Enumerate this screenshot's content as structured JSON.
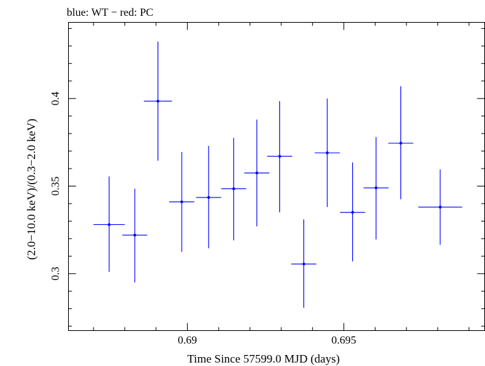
{
  "chart_data": {
    "type": "scatter",
    "title": "blue: WT − red: PC",
    "xlabel": "Time Since 57599.0 MJD (days)",
    "ylabel": "(2.0−10.0 keV)/(0.3−2.0 keV)",
    "xlim": [
      0.6862,
      0.6995
    ],
    "ylim": [
      0.2675,
      0.4435
    ],
    "xticks_major": [
      0.69,
      0.695
    ],
    "xtick_labels": [
      "0.69",
      "0.695"
    ],
    "yticks_major": [
      0.3,
      0.35,
      0.4
    ],
    "ytick_labels": [
      "0.3",
      "0.35",
      "0.4"
    ],
    "grid": false,
    "series": [
      {
        "color": "#0000ff",
        "points": [
          {
            "x": 0.6875,
            "y": 0.328,
            "xerr": 0.0005,
            "yerr_lo": 0.027,
            "yerr_hi": 0.0275
          },
          {
            "x": 0.68832,
            "y": 0.322,
            "xerr": 0.0004,
            "yerr_lo": 0.027,
            "yerr_hi": 0.0265
          },
          {
            "x": 0.68906,
            "y": 0.3985,
            "xerr": 0.00045,
            "yerr_lo": 0.034,
            "yerr_hi": 0.034
          },
          {
            "x": 0.68982,
            "y": 0.341,
            "xerr": 0.0004,
            "yerr_lo": 0.0285,
            "yerr_hi": 0.0285
          },
          {
            "x": 0.69068,
            "y": 0.3435,
            "xerr": 0.0004,
            "yerr_lo": 0.029,
            "yerr_hi": 0.0295
          },
          {
            "x": 0.69148,
            "y": 0.3485,
            "xerr": 0.0004,
            "yerr_lo": 0.0295,
            "yerr_hi": 0.029
          },
          {
            "x": 0.69222,
            "y": 0.3575,
            "xerr": 0.0004,
            "yerr_lo": 0.0305,
            "yerr_hi": 0.0305
          },
          {
            "x": 0.69295,
            "y": 0.367,
            "xerr": 0.0004,
            "yerr_lo": 0.032,
            "yerr_hi": 0.0315
          },
          {
            "x": 0.69372,
            "y": 0.3055,
            "xerr": 0.0004,
            "yerr_lo": 0.025,
            "yerr_hi": 0.0255
          },
          {
            "x": 0.69447,
            "y": 0.369,
            "xerr": 0.0004,
            "yerr_lo": 0.031,
            "yerr_hi": 0.031
          },
          {
            "x": 0.69528,
            "y": 0.335,
            "xerr": 0.0004,
            "yerr_lo": 0.028,
            "yerr_hi": 0.0285
          },
          {
            "x": 0.69603,
            "y": 0.349,
            "xerr": 0.0004,
            "yerr_lo": 0.0295,
            "yerr_hi": 0.029
          },
          {
            "x": 0.69682,
            "y": 0.3745,
            "xerr": 0.0004,
            "yerr_lo": 0.032,
            "yerr_hi": 0.0325
          },
          {
            "x": 0.69808,
            "y": 0.338,
            "xerr": 0.0007,
            "yerr_lo": 0.0215,
            "yerr_hi": 0.0215
          }
        ]
      }
    ]
  }
}
